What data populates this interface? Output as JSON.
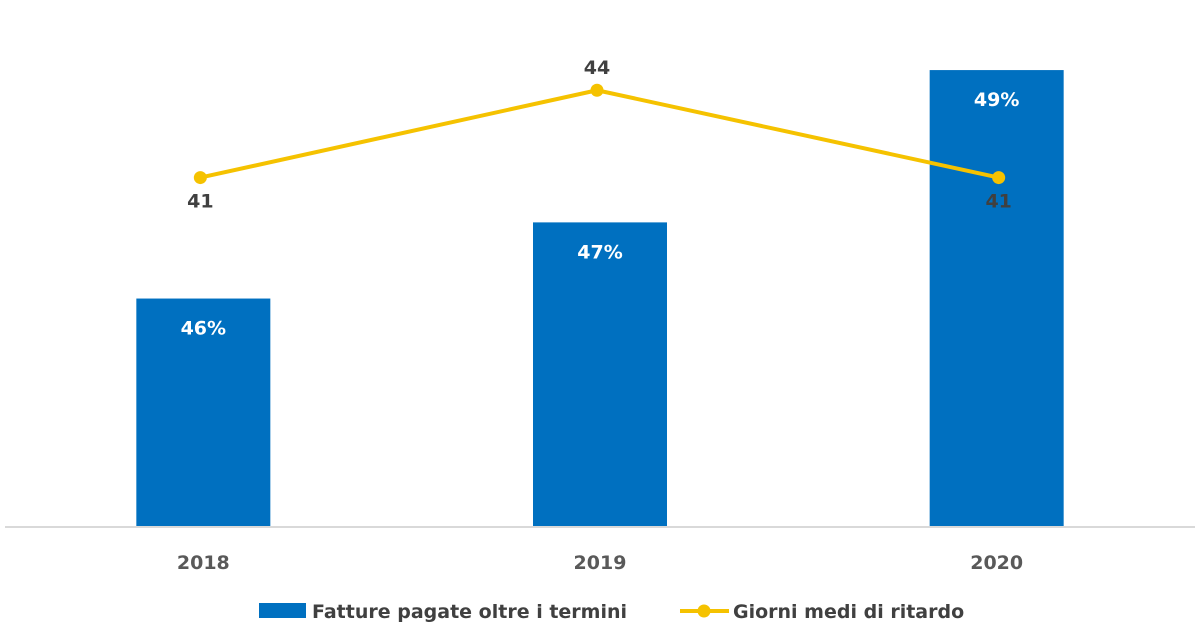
{
  "chart_data": {
    "type": "bar",
    "categories": [
      "2018",
      "2019",
      "2020"
    ],
    "series": [
      {
        "name": "Fatture pagate oltre i termini",
        "type": "bar",
        "values": [
          46,
          47,
          49
        ],
        "value_labels": [
          "46%",
          "47%",
          "49%"
        ],
        "color": "#0070C0"
      },
      {
        "name": "Giorni medi di ritardo",
        "type": "line",
        "values": [
          41,
          44,
          41
        ],
        "value_labels": [
          "41",
          "44",
          "41"
        ],
        "color": "#F5C200"
      }
    ],
    "axes": {
      "bar_ylim": [
        43,
        49.5
      ],
      "line_ylim": [
        29,
        46
      ]
    },
    "grid": false,
    "legend": "bottom",
    "axis_line_color": "#D9D9D9"
  }
}
